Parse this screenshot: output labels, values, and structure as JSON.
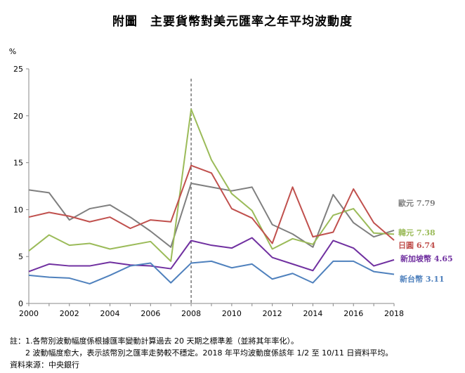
{
  "title": "附圖　主要貨幣對美元匯率之年平均波動度",
  "chart_data": {
    "type": "line",
    "ylabel": "%",
    "ylim": [
      0,
      25
    ],
    "yticks": [
      0,
      5,
      10,
      15,
      20,
      25
    ],
    "xlim": [
      2000,
      2018
    ],
    "xticks": [
      2000,
      2002,
      2004,
      2006,
      2008,
      2010,
      2012,
      2014,
      2016,
      2018
    ],
    "x": [
      2000,
      2001,
      2002,
      2003,
      2004,
      2005,
      2006,
      2007,
      2008,
      2009,
      2010,
      2011,
      2012,
      2013,
      2014,
      2015,
      2016,
      2017,
      2018
    ],
    "grid": false,
    "reference_line_x": 2008,
    "series": [
      {
        "name": "歐元",
        "label": "歐元 7.79",
        "color": "#7f7f7f",
        "values": [
          12.1,
          11.8,
          8.9,
          10.1,
          10.5,
          9.2,
          7.7,
          6.0,
          12.8,
          12.4,
          12.0,
          12.4,
          8.4,
          7.4,
          6.0,
          11.6,
          8.6,
          7.1,
          7.79
        ]
      },
      {
        "name": "韓元",
        "label": "韓元 7.38",
        "color": "#9bbb59",
        "values": [
          5.6,
          7.3,
          6.2,
          6.4,
          5.8,
          6.2,
          6.6,
          4.5,
          20.7,
          15.3,
          11.7,
          9.9,
          5.8,
          6.9,
          6.3,
          9.4,
          10.1,
          7.5,
          7.38
        ]
      },
      {
        "name": "日圓",
        "label": "日圓 6.74",
        "color": "#c0504d",
        "values": [
          9.2,
          9.7,
          9.3,
          8.7,
          9.2,
          8.0,
          8.9,
          8.7,
          14.7,
          13.9,
          10.1,
          9.1,
          6.4,
          12.4,
          7.1,
          7.6,
          12.2,
          8.6,
          6.74
        ]
      },
      {
        "name": "新加坡幣",
        "label": "新加坡幣 4.65",
        "color": "#7030a0",
        "values": [
          3.4,
          4.2,
          4.0,
          4.0,
          4.4,
          4.1,
          4.0,
          3.7,
          6.7,
          6.2,
          5.9,
          7.0,
          4.9,
          4.2,
          3.5,
          6.7,
          5.9,
          4.0,
          4.65
        ]
      },
      {
        "name": "新台幣",
        "label": "新台幣 3.11",
        "color": "#4f81bd",
        "values": [
          3.0,
          2.8,
          2.7,
          2.1,
          3.0,
          4.0,
          4.3,
          2.2,
          4.3,
          4.5,
          3.8,
          4.2,
          2.6,
          3.2,
          2.2,
          4.5,
          4.5,
          3.4,
          3.11
        ]
      }
    ]
  },
  "notes": [
    "註：1.各幣別波動幅度係根據匯率變動計算過去 20 天期之標準差（並將其年率化）。",
    "　　2 波動幅度愈大，表示該幣別之匯率走勢較不穩定。2018 年平均波動度係該年 1/2 至 10/11 日資料平均。",
    "資料來源：中央銀行"
  ]
}
